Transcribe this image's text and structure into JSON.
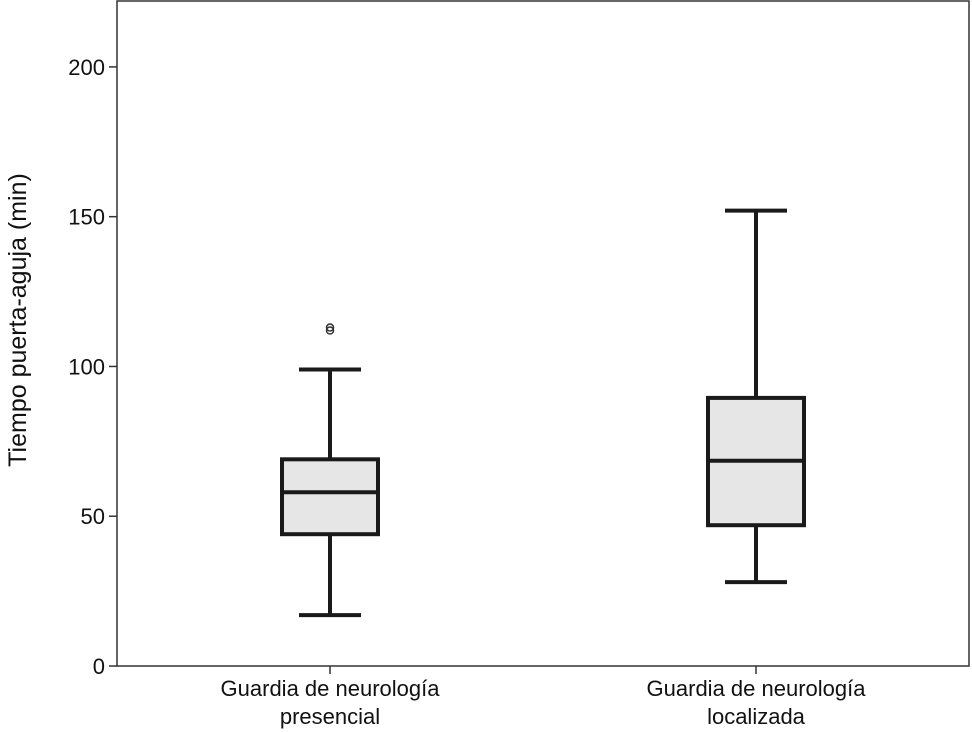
{
  "chart_data": {
    "type": "boxplot",
    "title": "",
    "xlabel": "",
    "ylabel": "Tiempo puerta-aguja (min)",
    "ylim": [
      0,
      222
    ],
    "y_ticks": [
      0,
      50,
      100,
      150,
      200
    ],
    "grid": false,
    "categories": [
      {
        "lines": [
          "Guardia de neurología",
          "presencial"
        ]
      },
      {
        "lines": [
          "Guardia de neurología",
          "localizada"
        ]
      }
    ],
    "boxes": [
      {
        "whisker_low": 17,
        "q1": 44,
        "median": 58,
        "q3": 69,
        "whisker_high": 99,
        "outliers": [
          112,
          113
        ]
      },
      {
        "whisker_low": 28,
        "q1": 47,
        "median": 68.5,
        "q3": 89.5,
        "whisker_high": 152,
        "outliers": []
      }
    ],
    "colors": {
      "box_fill": "#e6e6e6",
      "stroke": "#1a1a1a",
      "axis": "#333333"
    }
  }
}
